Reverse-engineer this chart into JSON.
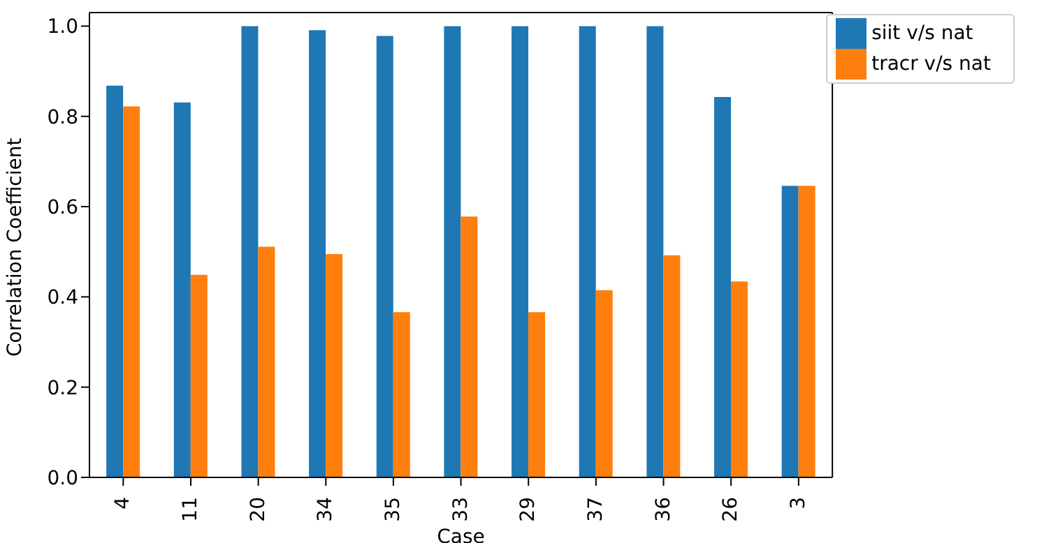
{
  "chart_data": {
    "type": "bar",
    "xlabel": "Case",
    "ylabel": "Correlation Coefficient",
    "categories": [
      "4",
      "11",
      "20",
      "34",
      "35",
      "33",
      "29",
      "37",
      "36",
      "26",
      "3"
    ],
    "series": [
      {
        "name": "siit v/s nat",
        "color": "#1f77b4",
        "values": [
          0.868,
          0.831,
          1.0,
          0.991,
          0.978,
          1.0,
          1.0,
          1.0,
          1.0,
          0.843,
          0.646
        ]
      },
      {
        "name": "tracr v/s nat",
        "color": "#ff7f0e",
        "values": [
          0.822,
          0.449,
          0.511,
          0.495,
          0.366,
          0.578,
          0.366,
          0.415,
          0.492,
          0.434,
          0.646
        ]
      }
    ],
    "ylim": [
      0,
      1.03
    ],
    "yticks": [
      {
        "value": 0,
        "label": "0.0"
      },
      {
        "value": 0.2,
        "label": "0.2"
      },
      {
        "value": 0.4,
        "label": "0.4"
      },
      {
        "value": 0.6,
        "label": "0.6"
      },
      {
        "value": 0.8,
        "label": "0.8"
      },
      {
        "value": 1,
        "label": "1.0"
      }
    ],
    "grid": false,
    "legend": "top right"
  }
}
